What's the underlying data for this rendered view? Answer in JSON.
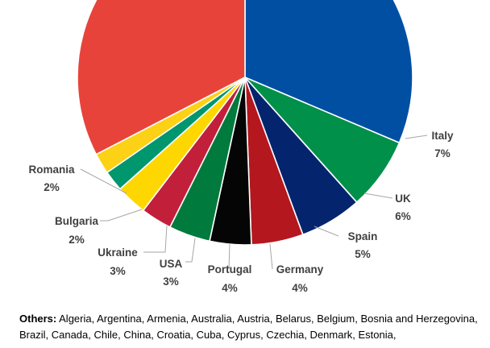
{
  "chart_data": {
    "type": "pie",
    "slices": [
      {
        "label": "Italy",
        "value": 7,
        "value_label": "7%",
        "color": "#00904a"
      },
      {
        "label": "UK",
        "value": 6,
        "value_label": "6%",
        "color": "#04246e"
      },
      {
        "label": "Spain",
        "value": 5,
        "value_label": "5%",
        "color": "#b5171f"
      },
      {
        "label": "Germany",
        "value": 4,
        "value_label": "4%",
        "color": "#050505"
      },
      {
        "label": "Portugal",
        "value": 4,
        "value_label": "4%",
        "color": "#007a3d"
      },
      {
        "label": "USA",
        "value": 3,
        "value_label": "3%",
        "color": "#c21f3a"
      },
      {
        "label": "Ukraine",
        "value": 3,
        "value_label": "3%",
        "color": "#ffd700"
      },
      {
        "label": "Bulgaria",
        "value": 2,
        "value_label": "2%",
        "color": "#00966e"
      },
      {
        "label": "Romania",
        "value": 2,
        "value_label": "2%",
        "color": "#fcd116"
      }
    ],
    "partial_slices": [
      {
        "label": "",
        "color": "#004fa3"
      },
      {
        "label": "",
        "color": "#e8433a"
      }
    ]
  },
  "others": {
    "heading": "Others:",
    "text": "Algeria, Argentina, Armenia, Australia, Austria, Belarus, Belgium, Bosnia and Herzegovina, Brazil, Canada, Chile, China, Croatia, Cuba, Cyprus, Czechia, Denmark, Estonia,"
  }
}
